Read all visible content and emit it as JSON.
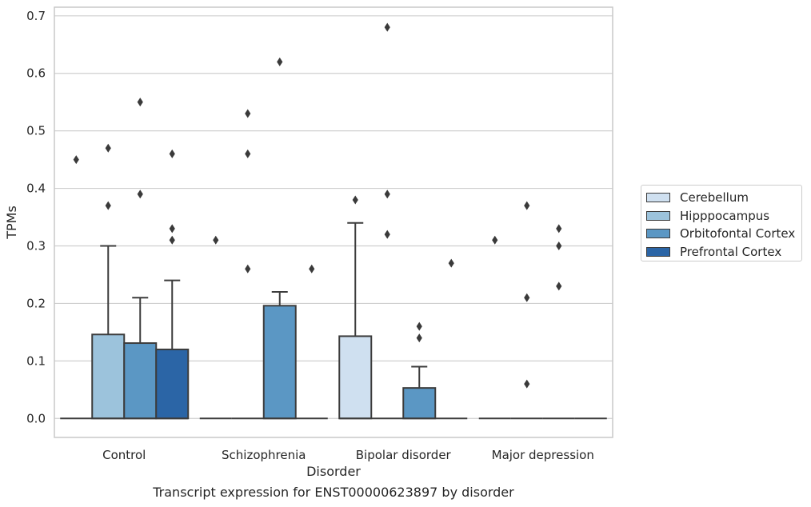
{
  "caption": "Transcript expression for ENST00000623897 by disorder",
  "chart_data": {
    "type": "box",
    "xlabel": "Disorder",
    "ylabel": "TPMs",
    "ylim": [
      -0.033,
      0.715
    ],
    "yticks": [
      0.0,
      0.1,
      0.2,
      0.3,
      0.4,
      0.5,
      0.6,
      0.7
    ],
    "ytick_labels": [
      "0.0",
      "0.1",
      "0.2",
      "0.3",
      "0.4",
      "0.5",
      "0.6",
      "0.7"
    ],
    "grid": true,
    "legend_position": "right",
    "categories": [
      "Control",
      "Schizophrenia",
      "Bipolar disorder",
      "Major depression"
    ],
    "series": [
      {
        "name": "Cerebellum",
        "color": "#cfe0f0",
        "boxes": [
          {
            "q1": 0,
            "median": 0,
            "q3": 0,
            "whisker_low": 0,
            "whisker_high": 0,
            "outliers": [
              0.45
            ]
          },
          {
            "q1": 0,
            "median": 0,
            "q3": 0,
            "whisker_low": 0,
            "whisker_high": 0,
            "outliers": [
              0.31
            ]
          },
          {
            "q1": 0,
            "median": 0,
            "q3": 0.143,
            "whisker_low": 0,
            "whisker_high": 0.34,
            "outliers": [
              0.38
            ]
          },
          {
            "q1": 0,
            "median": 0,
            "q3": 0,
            "whisker_low": 0,
            "whisker_high": 0,
            "outliers": [
              0.31
            ]
          }
        ]
      },
      {
        "name": "Hipppocampus",
        "color": "#9cc3dc",
        "boxes": [
          {
            "q1": 0,
            "median": 0,
            "q3": 0.146,
            "whisker_low": 0,
            "whisker_high": 0.3,
            "outliers": [
              0.47,
              0.37
            ]
          },
          {
            "q1": 0,
            "median": 0,
            "q3": 0,
            "whisker_low": 0,
            "whisker_high": 0,
            "outliers": [
              0.53,
              0.46,
              0.26
            ]
          },
          {
            "q1": 0,
            "median": 0,
            "q3": 0,
            "whisker_low": 0,
            "whisker_high": 0,
            "outliers": [
              0.68,
              0.39,
              0.32
            ]
          },
          {
            "q1": 0,
            "median": 0,
            "q3": 0,
            "whisker_low": 0,
            "whisker_high": 0,
            "outliers": [
              0.37,
              0.21,
              0.06
            ]
          }
        ]
      },
      {
        "name": "Orbitofontal Cortex",
        "color": "#5b97c4",
        "boxes": [
          {
            "q1": 0,
            "median": 0,
            "q3": 0.131,
            "whisker_low": 0,
            "whisker_high": 0.21,
            "outliers": [
              0.55,
              0.39
            ]
          },
          {
            "q1": 0,
            "median": 0,
            "q3": 0.196,
            "whisker_low": 0,
            "whisker_high": 0.22,
            "outliers": [
              0.62
            ]
          },
          {
            "q1": 0,
            "median": 0,
            "q3": 0.053,
            "whisker_low": 0,
            "whisker_high": 0.09,
            "outliers": [
              0.16,
              0.14
            ]
          },
          {
            "q1": 0,
            "median": 0,
            "q3": 0,
            "whisker_low": 0,
            "whisker_high": 0,
            "outliers": [
              0.33,
              0.3,
              0.23
            ]
          }
        ]
      },
      {
        "name": "Prefrontal Cortex",
        "color": "#2b65a6",
        "boxes": [
          {
            "q1": 0,
            "median": 0,
            "q3": 0.12,
            "whisker_low": 0,
            "whisker_high": 0.24,
            "outliers": [
              0.46,
              0.33,
              0.31
            ]
          },
          {
            "q1": 0,
            "median": 0,
            "q3": 0,
            "whisker_low": 0,
            "whisker_high": 0,
            "outliers": [
              0.26
            ]
          },
          {
            "q1": 0,
            "median": 0,
            "q3": 0,
            "whisker_low": 0,
            "whisker_high": 0,
            "outliers": [
              0.27
            ]
          },
          {
            "q1": 0,
            "median": 0,
            "q3": 0,
            "whisker_low": 0,
            "whisker_high": 0,
            "outliers": []
          }
        ]
      }
    ]
  }
}
